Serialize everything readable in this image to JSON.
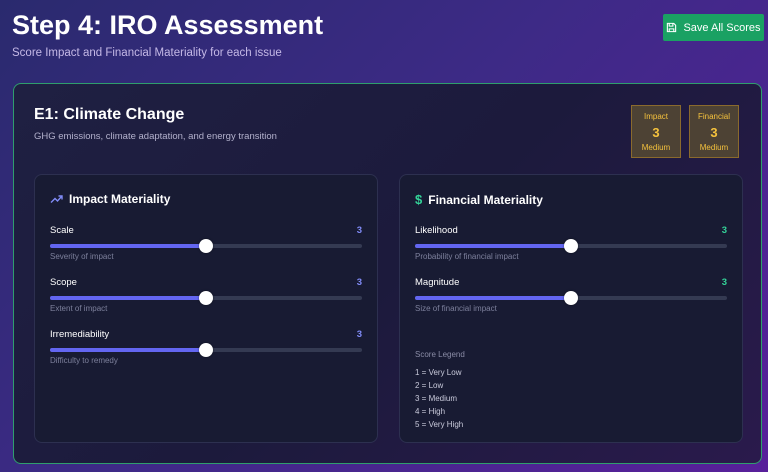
{
  "header": {
    "title": "Step 4: IRO Assessment",
    "subtitle": "Score Impact and Financial Materiality for each issue",
    "save_label": "Save All Scores"
  },
  "issue": {
    "title": "E1: Climate Change",
    "description": "GHG emissions, climate adaptation, and energy transition",
    "badges": [
      {
        "label": "Impact",
        "score": "3",
        "level": "Medium"
      },
      {
        "label": "Financial",
        "score": "3",
        "level": "Medium"
      }
    ]
  },
  "impact": {
    "title": "Impact Materiality",
    "icon": "trending-up-icon",
    "value_color": "#818cf8",
    "sliders": [
      {
        "label": "Scale",
        "value": "3",
        "hint": "Severity of impact",
        "fraction": 0.5
      },
      {
        "label": "Scope",
        "value": "3",
        "hint": "Extent of impact",
        "fraction": 0.5
      },
      {
        "label": "Irremediability",
        "value": "3",
        "hint": "Difficulty to remedy",
        "fraction": 0.5
      }
    ]
  },
  "financial": {
    "title": "Financial Materiality",
    "icon": "dollar-icon",
    "value_color": "#34d399",
    "sliders": [
      {
        "label": "Likelihood",
        "value": "3",
        "hint": "Probability of financial impact",
        "fraction": 0.5
      },
      {
        "label": "Magnitude",
        "value": "3",
        "hint": "Size of financial impact",
        "fraction": 0.5
      }
    ],
    "legend": {
      "title": "Score Legend",
      "items": [
        "1 = Very Low",
        "2 = Low",
        "3 = Medium",
        "4 = High",
        "5 = Very High"
      ]
    }
  },
  "colors": {
    "accent": "#6366f1",
    "save_button": "#1aa163",
    "badge_text": "#f5c23d",
    "card_border": "#2f9e6d"
  }
}
